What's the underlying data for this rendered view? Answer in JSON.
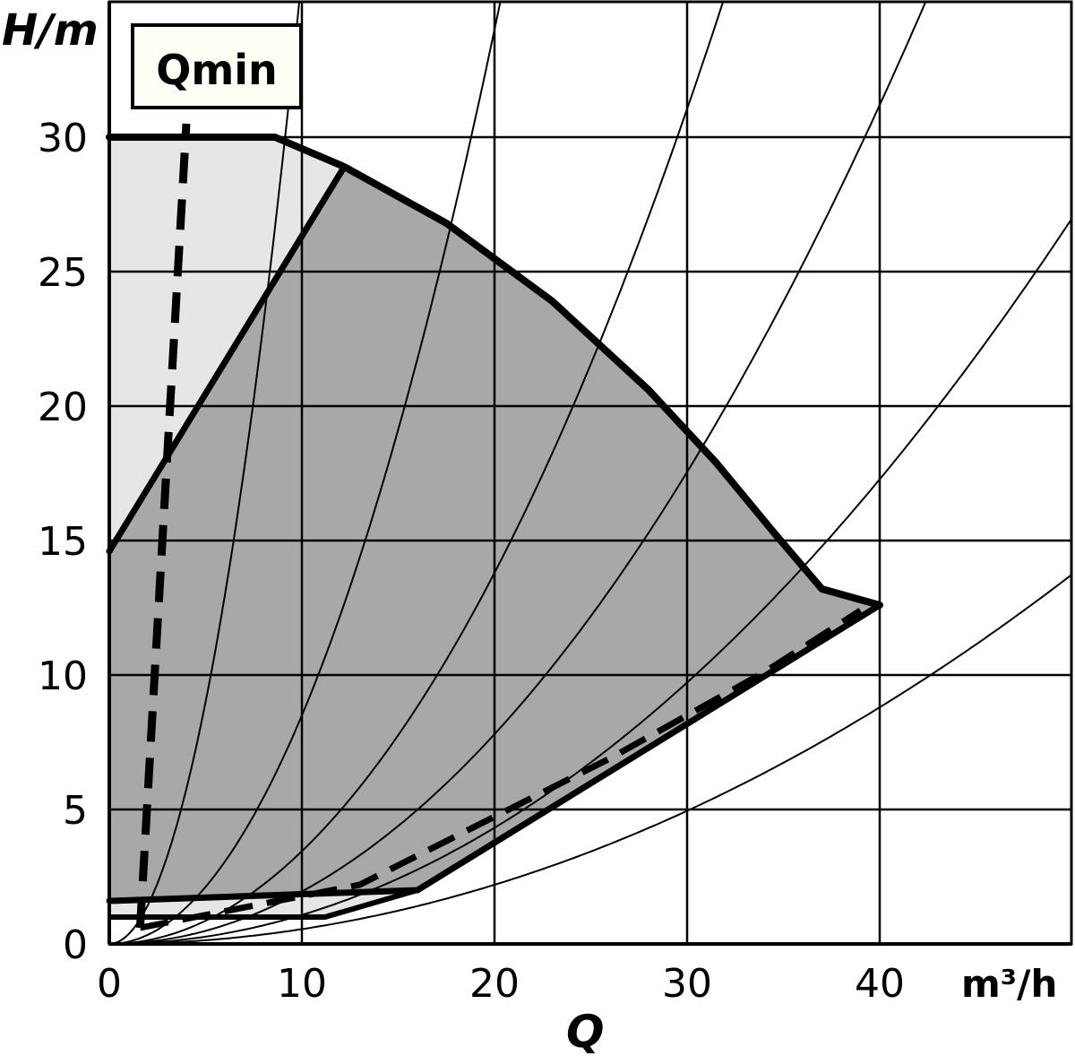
{
  "chart_data": {
    "type": "area",
    "xlabel": "Q",
    "ylabel": "H/m",
    "x_unit": "m³/h",
    "xlim": [
      0,
      50
    ],
    "ylim": [
      0,
      35
    ],
    "x_ticks": [
      "0",
      "10",
      "20",
      "30",
      "40"
    ],
    "y_ticks": [
      "0",
      "5",
      "10",
      "15",
      "20",
      "25",
      "30"
    ],
    "grid": true,
    "annotation": "Qmin",
    "colors": {
      "full_range": "#e6e6e6",
      "operating_range": "#a9a7a8",
      "line": "#000000",
      "background": "#ffffff"
    },
    "full_range_polygon": [
      [
        0,
        30
      ],
      [
        8.6,
        30
      ],
      [
        12.2,
        28.9
      ],
      [
        17.5,
        26.8
      ],
      [
        23,
        23.9
      ],
      [
        28,
        20.6
      ],
      [
        31.5,
        17.9
      ],
      [
        34.5,
        15.3
      ],
      [
        37,
        13.2
      ],
      [
        40,
        12.6
      ],
      [
        16,
        2
      ],
      [
        11.2,
        1
      ],
      [
        0,
        1
      ],
      [
        0,
        30
      ]
    ],
    "operating_range_polygon": [
      [
        0,
        14.6
      ],
      [
        12.2,
        28.9
      ],
      [
        17.5,
        26.8
      ],
      [
        23,
        23.9
      ],
      [
        28,
        20.6
      ],
      [
        31.5,
        17.9
      ],
      [
        34.5,
        15.3
      ],
      [
        37,
        13.2
      ],
      [
        40,
        12.6
      ],
      [
        16,
        2
      ],
      [
        0,
        1.6
      ]
    ],
    "max_curve": [
      [
        0,
        30
      ],
      [
        8.6,
        30
      ],
      [
        12.2,
        28.9
      ],
      [
        17.5,
        26.8
      ],
      [
        23,
        23.9
      ],
      [
        28,
        20.6
      ],
      [
        31.5,
        17.9
      ],
      [
        34.5,
        15.3
      ],
      [
        37,
        13.2
      ],
      [
        40,
        12.6
      ]
    ],
    "left_limit_line": [
      [
        0,
        14.6
      ],
      [
        12.2,
        28.9
      ]
    ],
    "right_limit_line": [
      [
        40,
        12.6
      ],
      [
        16,
        2
      ],
      [
        0,
        1.6
      ]
    ],
    "min_curve": [
      [
        0,
        1
      ],
      [
        11.2,
        1
      ],
      [
        16,
        2
      ]
    ],
    "dashed_limit": [
      [
        1.6,
        0.6
      ],
      [
        13,
        2.2
      ],
      [
        26,
        6.9
      ],
      [
        34,
        10.1
      ],
      [
        39,
        12.4
      ]
    ],
    "qmin_line": [
      [
        1.6,
        0.6
      ],
      [
        4,
        30.5
      ]
    ],
    "system_curves_k": [
      0.36,
      0.085,
      0.0345,
      0.0195,
      0.0108,
      0.0055
    ]
  }
}
